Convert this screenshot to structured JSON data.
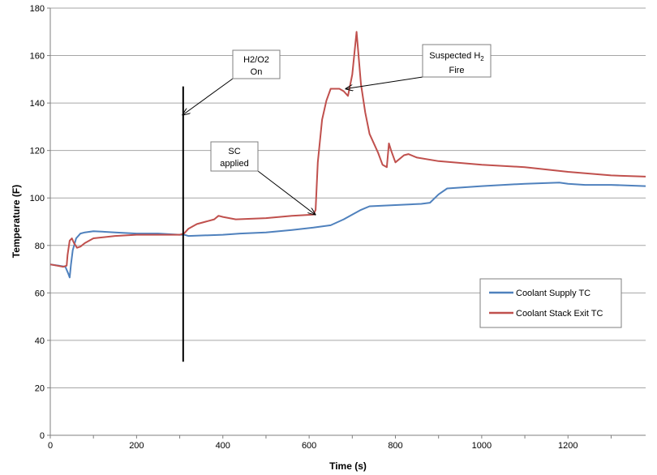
{
  "chart_data": {
    "type": "line",
    "title": "",
    "xlabel": "Time (s)",
    "ylabel": "Temperature (F)",
    "xlim": [
      0,
      1380
    ],
    "ylim": [
      0,
      180
    ],
    "xticks": [
      0,
      200,
      400,
      600,
      800,
      1000,
      1200
    ],
    "yticks": [
      0,
      20,
      40,
      60,
      80,
      100,
      120,
      140,
      160,
      180
    ],
    "grid": true,
    "legend_position": "right",
    "series": [
      {
        "name": "Coolant Supply TC",
        "color": "#4F81BD",
        "x": [
          0,
          20,
          35,
          42,
          45,
          48,
          52,
          60,
          70,
          80,
          100,
          150,
          200,
          250,
          300,
          310,
          320,
          400,
          440,
          500,
          560,
          610,
          650,
          680,
          700,
          720,
          740,
          800,
          860,
          880,
          900,
          920,
          1000,
          1100,
          1180,
          1200,
          1240,
          1300,
          1380
        ],
        "y": [
          72,
          71.5,
          71,
          68,
          66.5,
          72,
          78,
          83,
          85,
          85.5,
          86,
          85.5,
          85,
          85,
          84.5,
          84.5,
          84,
          84.5,
          85,
          85.5,
          86.5,
          87.5,
          88.5,
          91,
          93,
          95,
          96.5,
          97,
          97.5,
          98,
          101.5,
          104,
          105,
          106,
          106.5,
          106,
          105.5,
          105.5,
          105
        ]
      },
      {
        "name": "Coolant Stack Exit TC",
        "color": "#C0504D",
        "x": [
          0,
          30,
          38,
          40,
          45,
          50,
          55,
          62,
          70,
          80,
          100,
          150,
          200,
          250,
          300,
          310,
          320,
          340,
          360,
          380,
          390,
          400,
          430,
          500,
          560,
          610,
          615,
          620,
          630,
          640,
          650,
          670,
          680,
          690,
          700,
          710,
          720,
          730,
          740,
          760,
          770,
          780,
          785,
          790,
          800,
          820,
          830,
          850,
          900,
          1000,
          1100,
          1200,
          1300,
          1380
        ],
        "y": [
          72,
          71,
          71.5,
          76,
          82,
          83,
          81,
          79,
          79.5,
          81,
          83,
          84,
          84.5,
          84.5,
          84.5,
          85,
          87,
          89,
          90,
          91,
          92.5,
          92,
          91,
          91.5,
          92.5,
          93,
          95,
          115,
          133,
          141,
          146,
          146,
          145,
          143,
          152,
          170,
          148,
          136,
          127,
          119,
          114,
          113,
          123,
          120,
          115,
          118,
          118.5,
          117,
          115.5,
          114,
          113,
          111,
          109.5,
          109
        ]
      }
    ],
    "vertical_line": {
      "x": 308,
      "y_start": 31,
      "y_end": 147
    },
    "annotations": [
      {
        "lines": [
          "H2/O2",
          "On"
        ],
        "anchor": [
          307,
          135
        ]
      },
      {
        "lines": [
          "SC",
          "applied"
        ],
        "anchor": [
          614,
          93
        ]
      },
      {
        "lines": [
          "Suspected H",
          "Fire"
        ],
        "subscript": "2",
        "anchor": [
          685,
          146
        ]
      }
    ]
  }
}
